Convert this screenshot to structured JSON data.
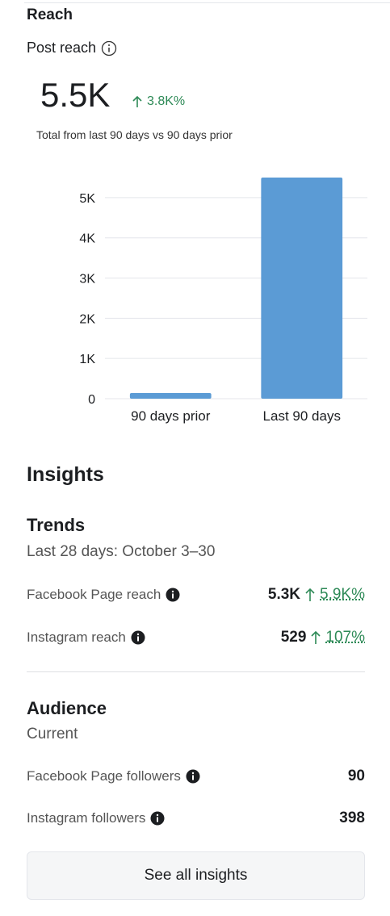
{
  "reach": {
    "title": "Reach",
    "label": "Post reach",
    "value": "5.5K",
    "change": "3.8K%",
    "note": "Total from last 90 days vs 90 days prior"
  },
  "chart_data": {
    "type": "bar",
    "categories": [
      "90 days prior",
      "Last 90 days"
    ],
    "values": [
      140,
      5500
    ],
    "color": "#5b9bd5",
    "ylim": [
      0,
      5500
    ],
    "yticks": [
      0,
      {
        "value": 1000,
        "label": "1K"
      },
      {
        "value": 2000,
        "label": "2K"
      },
      {
        "value": 3000,
        "label": "3K"
      },
      {
        "value": 4000,
        "label": "4K"
      },
      {
        "value": 5000,
        "label": "5K"
      }
    ],
    "grid": true
  },
  "insights": {
    "title": "Insights",
    "trends": {
      "title": "Trends",
      "period": "Last 28 days: October 3–30",
      "rows": [
        {
          "label": "Facebook Page reach",
          "value": "5.3K",
          "change": "5.9K%"
        },
        {
          "label": "Instagram reach",
          "value": "529",
          "change": "107%"
        }
      ]
    },
    "audience": {
      "title": "Audience",
      "period": "Current",
      "rows": [
        {
          "label": "Facebook Page followers",
          "value": "90"
        },
        {
          "label": "Instagram followers",
          "value": "398"
        }
      ]
    },
    "button": "See all insights"
  }
}
